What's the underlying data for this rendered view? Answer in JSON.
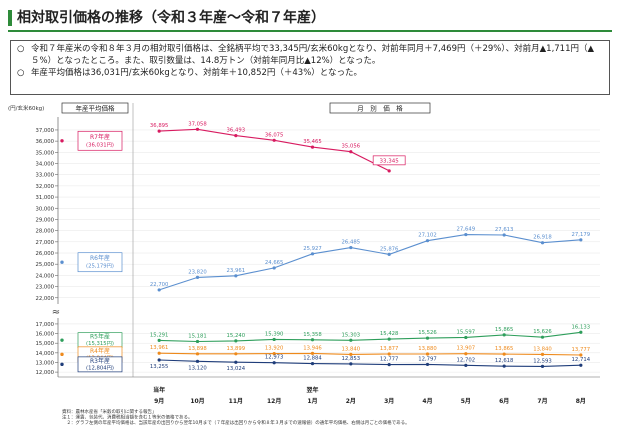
{
  "title": "相対取引価格の推移（令和３年産～令和７年産）",
  "summary": {
    "bullet_symbol": "○",
    "items": [
      "令和７年産米の令和８年３月の相対取引価格は、全銘柄平均で33,345円/玄米60kgとなり、対前年同月＋7,469円（＋29%）、対前月▲1,711円（▲５%）となったところ。また、取引数量は、14.8万トン（対前年同月比▲12%）となった。",
      "年産平均価格は36,031円/玄米60kgとなり、対前年＋10,852円（＋43%）となった。"
    ]
  },
  "footnotes": [
    "資料：農林水産省「米穀の取引に関する報告」",
    "注１：運賃、包装代、消費税相当額を含む１等米の価格である。",
    "　２：グラフ左側の年産平均価格は、当該年産の出回りから翌年10月まで（７年産は出回りから令和８年３月までの速報値）の通年平均価格、右側は月ごとの価格である。"
  ],
  "chart_data": {
    "type": "line",
    "unit_label": "(円/玄米60kg)",
    "left_header": "年産平均価格",
    "right_header": "月　別　価　格",
    "axis_break_mark": "≈",
    "categories": [
      "9月",
      "10月",
      "11月",
      "12月",
      "1月",
      "2月",
      "3月",
      "4月",
      "5月",
      "6月",
      "7月",
      "8月"
    ],
    "category_prefix": [
      {
        "index": 0,
        "text": "当年"
      },
      {
        "index": 4,
        "text": "翌年"
      }
    ],
    "y_ticks_upper": [
      22000,
      23000,
      24000,
      25000,
      26000,
      27000,
      28000,
      29000,
      30000,
      31000,
      32000,
      33000,
      34000,
      35000,
      36000,
      37000
    ],
    "y_ticks_lower": [
      12000,
      13000,
      14000,
      15000,
      16000,
      17000
    ],
    "y_tick_labels_upper": [
      "22,000",
      "23,000",
      "24,000",
      "25,000",
      "26,000",
      "27,000",
      "28,000",
      "29,000",
      "30,000",
      "31,000",
      "32,000",
      "33,000",
      "34,000",
      "35,000",
      "36,000",
      "37,000"
    ],
    "y_tick_labels_lower": [
      "12,000",
      "13,000",
      "14,000",
      "15,000",
      "16,000",
      "17,000"
    ],
    "ylim_upper": [
      21800,
      37800
    ],
    "ylim_lower": [
      11700,
      17200
    ],
    "series": [
      {
        "name": "R7年産",
        "average_label": "(36,031円)",
        "average": 36031,
        "color": "#d81b60",
        "values": [
          36895,
          37058,
          36493,
          36075,
          35465,
          35056,
          33345,
          null,
          null,
          null,
          null,
          null
        ],
        "value_labels": [
          "36,895",
          "37,058",
          "36,493",
          "36,075",
          "35,465",
          "35,056",
          "33,345",
          "",
          "",
          "",
          "",
          ""
        ],
        "boxed_last": true
      },
      {
        "name": "R6年産",
        "average_label": "(25,179円)",
        "average": 25179,
        "color": "#5b8fcf",
        "values": [
          22700,
          23820,
          23961,
          24665,
          25927,
          26485,
          25876,
          27102,
          27649,
          27613,
          26918,
          27179
        ],
        "value_labels": [
          "22,700",
          "23,820",
          "23,961",
          "24,665",
          "25,927",
          "26,485",
          "25,876",
          "27,102",
          "27,649",
          "27,613",
          "26,918",
          "27,179"
        ]
      },
      {
        "name": "R5年産",
        "average_label": "(15,315円)",
        "average": 15315,
        "color": "#2e9e5b",
        "values": [
          15291,
          15181,
          15240,
          15390,
          15358,
          15303,
          15428,
          15526,
          15597,
          15865,
          15626,
          16133
        ],
        "value_labels": [
          "15,291",
          "15,181",
          "15,240",
          "15,390",
          "15,358",
          "15,303",
          "15,428",
          "15,526",
          "15,597",
          "15,865",
          "15,626",
          "16,133"
        ]
      },
      {
        "name": "R4年産",
        "average_label": "(13,844円)",
        "average": 13844,
        "color": "#ee8a1c",
        "values": [
          13961,
          13898,
          13899,
          13920,
          13946,
          13840,
          13877,
          13880,
          13907,
          13865,
          13840,
          13777
        ],
        "value_labels": [
          "13,961",
          "13,898",
          "13,899",
          "13,920",
          "13,946",
          "13,840",
          "13,877",
          "13,880",
          "13,907",
          "13,865",
          "13,840",
          "13,777"
        ]
      },
      {
        "name": "R3年産",
        "average_label": "(12,804円)",
        "average": 12804,
        "color": "#1f3d7a",
        "values": [
          13255,
          13120,
          13024,
          12973,
          12884,
          12853,
          12777,
          12797,
          12702,
          12618,
          12593,
          12714
        ],
        "value_labels": [
          "13,255",
          "13,120",
          "13,024",
          "12,973",
          "12,884",
          "12,853",
          "12,777",
          "12,797",
          "12,702",
          "12,618",
          "12,593",
          "12,714"
        ]
      }
    ]
  }
}
